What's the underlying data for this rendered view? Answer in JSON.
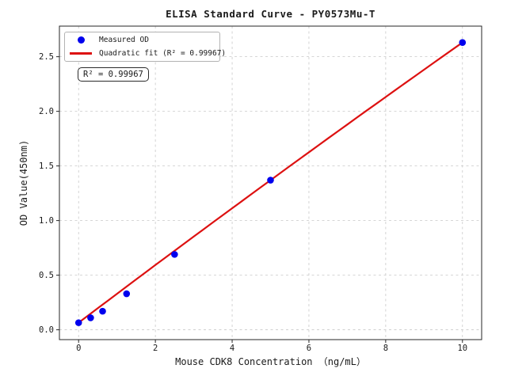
{
  "chart_data": {
    "type": "scatter",
    "title": "ELISA Standard Curve - PY0573Mu-T",
    "xlabel": "Mouse CDK8 Concentration （ng/mL）",
    "ylabel": "OD Value(450nm)",
    "xlim": [
      -0.5,
      10.5
    ],
    "ylim": [
      -0.09,
      2.78
    ],
    "xticks": [
      0,
      2,
      4,
      6,
      8,
      10
    ],
    "yticks": [
      0.0,
      0.5,
      1.0,
      1.5,
      2.0,
      2.5
    ],
    "grid": true,
    "grid_color": "#c9c9c9",
    "legend_position": "upper-left",
    "series": [
      {
        "name": "Measured OD",
        "type": "scatter",
        "color": "#0000ee",
        "x": [
          0,
          0.313,
          0.625,
          1.25,
          2.5,
          5,
          10
        ],
        "y": [
          0.065,
          0.11,
          0.17,
          0.33,
          0.69,
          1.37,
          2.63
        ]
      },
      {
        "name": "Quadratic fit (R² = 0.99967)",
        "type": "line",
        "color": "#dd1111",
        "coeffs": {
          "a0": 0.065,
          "a1": 0.2655,
          "a2": -0.0009
        },
        "x_range": [
          0,
          10
        ]
      }
    ],
    "annotation": "R² = 0.99967",
    "r_squared": 0.99967
  }
}
